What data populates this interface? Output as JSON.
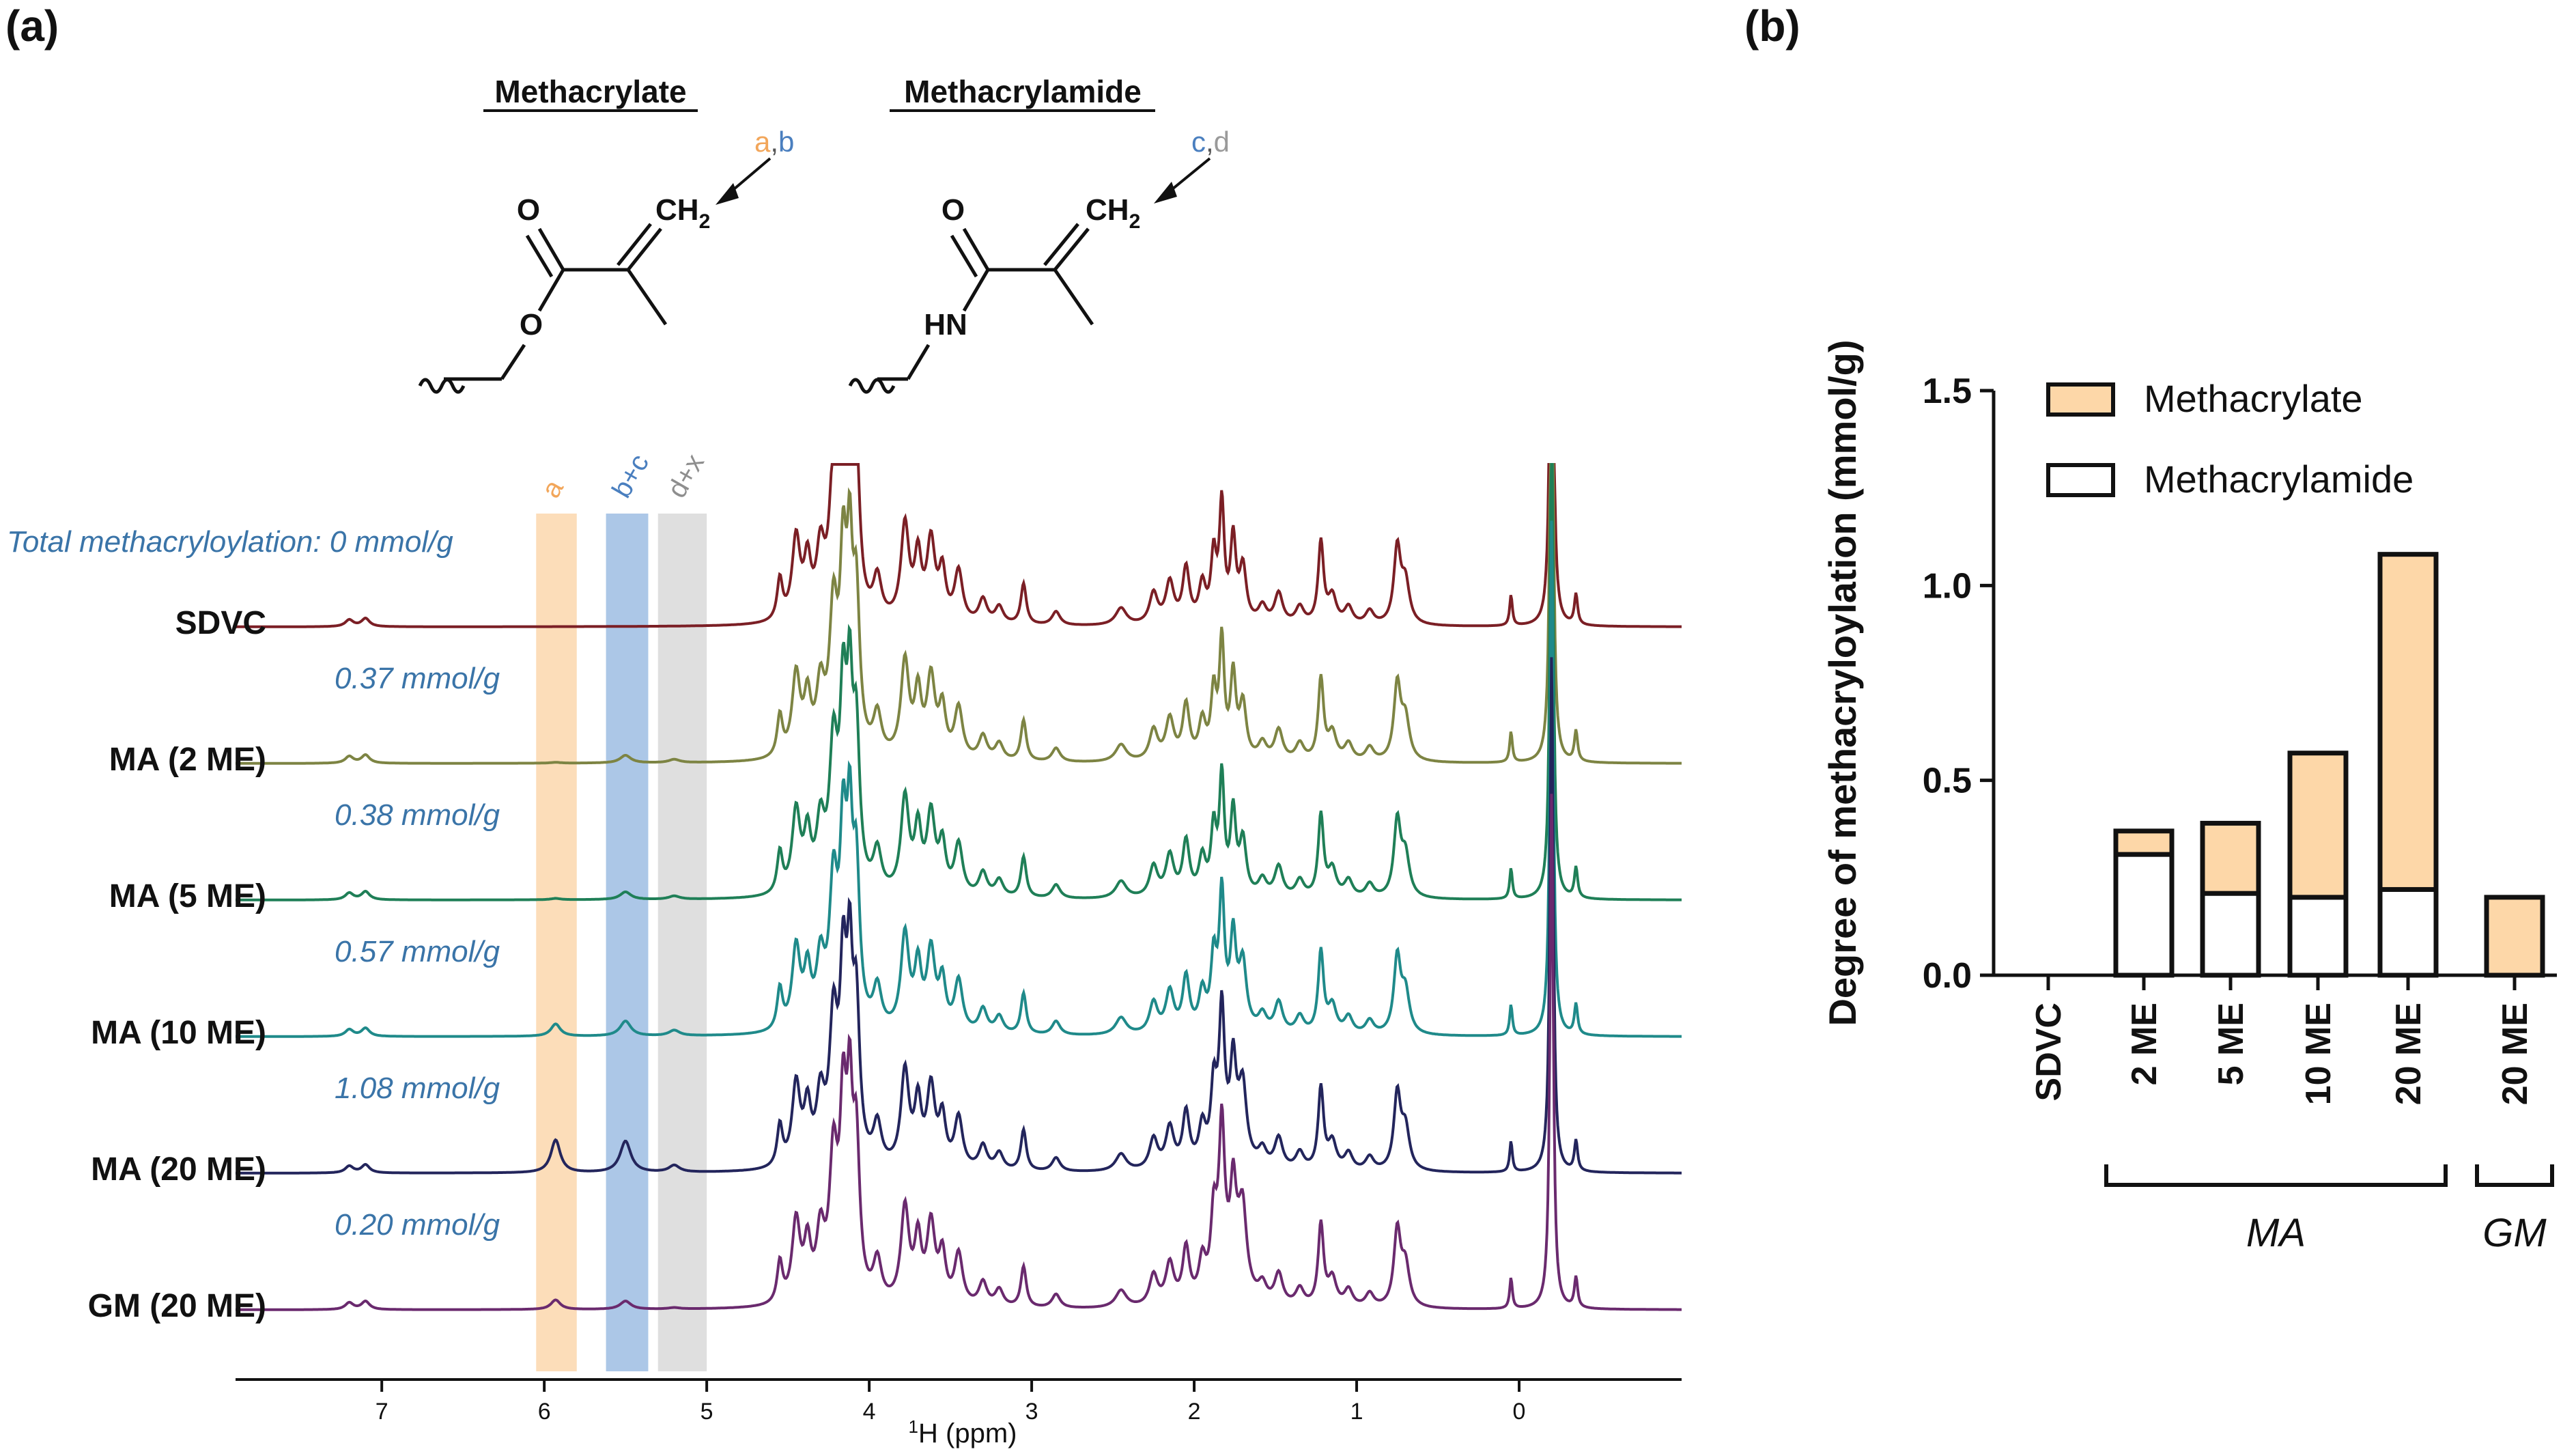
{
  "panel_a": {
    "label": "(a)",
    "structures": {
      "methacrylate": {
        "title": "Methacrylate",
        "arrow_letters": [
          "a",
          ",",
          "b"
        ],
        "o_label": "O",
        "ch2_label": "CH",
        "ch2_sub": "2",
        "ester_o": "O"
      },
      "methacrylamide": {
        "title": "Methacrylamide",
        "arrow_letters": [
          "c",
          ",",
          "d"
        ],
        "o_label": "O",
        "ch2_label": "CH",
        "ch2_sub": "2",
        "hn_label": "HN"
      }
    },
    "bands": [
      {
        "label": "a",
        "color": "#f2a65a",
        "fill": "#fbd7ad",
        "from_ppm": 6.05,
        "to_ppm": 5.8
      },
      {
        "label": "b+c",
        "color": "#4a7fbf",
        "fill": "#9ebde3",
        "from_ppm": 5.62,
        "to_ppm": 5.36
      },
      {
        "label": "d+x",
        "color": "#8e8e8e",
        "fill": "#d9d9d9",
        "from_ppm": 5.3,
        "to_ppm": 5.0
      }
    ],
    "annotation_color": "#3a74a8",
    "spectra": [
      {
        "name": "SDVC",
        "annotation": "Total methacryloylation: 0 mmol/g",
        "color": "#7b1f25",
        "a": 0.0,
        "bc": 0.0,
        "dx": 0.0
      },
      {
        "name": "MA (2 ME)",
        "annotation": "0.37 mmol/g",
        "color": "#7d8443",
        "a": 0.03,
        "bc": 0.28,
        "dx": 0.12
      },
      {
        "name": "MA (5 ME)",
        "annotation": "0.38 mmol/g",
        "color": "#1f7f57",
        "a": 0.05,
        "bc": 0.28,
        "dx": 0.12
      },
      {
        "name": "MA (10 ME)",
        "annotation": "0.57 mmol/g",
        "color": "#1f8a8a",
        "a": 0.45,
        "bc": 0.55,
        "dx": 0.2
      },
      {
        "name": "MA (20 ME)",
        "annotation": "1.08 mmol/g",
        "color": "#23255c",
        "a": 1.2,
        "bc": 1.15,
        "dx": 0.25
      },
      {
        "name": "GM (20 ME)",
        "annotation": "0.20 mmol/g",
        "color": "#6a2a6e",
        "a": 0.35,
        "bc": 0.3,
        "dx": 0.05
      }
    ],
    "x_axis": {
      "label_sup": "1",
      "label": "H (ppm)",
      "ticks": [
        "7",
        "6",
        "5",
        "4",
        "3",
        "2",
        "1",
        "0"
      ],
      "ppm_min": -1.0,
      "ppm_max": 7.9
    }
  },
  "panel_b": {
    "label": "(b)",
    "chart_data": {
      "type": "bar",
      "stacked": true,
      "title": "",
      "xlabel": "",
      "ylabel": "Degree of methacryloylation (mmol/g)",
      "ylim": [
        0,
        1.5
      ],
      "yticks": [
        "0.0",
        "0.5",
        "1.0",
        "1.5"
      ],
      "categories": [
        "SDVC",
        "2 ME",
        "5 ME",
        "10 ME",
        "20 ME",
        "20 ME"
      ],
      "series": [
        {
          "name": "Methacrylamide",
          "color": "#ffffff",
          "values": [
            0,
            0.31,
            0.21,
            0.2,
            0.22,
            0
          ]
        },
        {
          "name": "Methacrylate",
          "color": "#fdd7a8",
          "values": [
            0,
            0.06,
            0.18,
            0.37,
            0.86,
            0.2
          ]
        }
      ],
      "groups": [
        {
          "label": "MA",
          "members": [
            1,
            2,
            3,
            4
          ]
        },
        {
          "label": "GM",
          "members": [
            5
          ]
        }
      ],
      "legend": "top-left"
    }
  }
}
